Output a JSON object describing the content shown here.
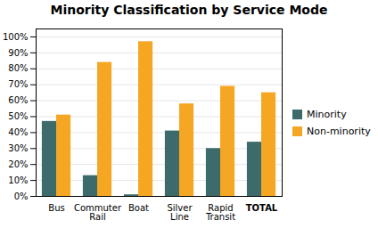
{
  "chart_data": {
    "type": "bar",
    "title": "Minority Classification by Service Mode",
    "categories": [
      "Bus",
      "Commuter\nRail",
      "Boat",
      "Silver\nLine",
      "Rapid\nTransit",
      "TOTAL"
    ],
    "series": [
      {
        "name": "Minority",
        "color": "#3d6b6b",
        "values": [
          0.47,
          0.13,
          0.01,
          0.41,
          0.3,
          0.34
        ]
      },
      {
        "name": "Non-minority",
        "color": "#f5a623",
        "values": [
          0.51,
          0.84,
          0.97,
          0.58,
          0.69,
          0.65
        ]
      }
    ],
    "ylim": [
      0,
      1.05
    ],
    "yticks": [
      {
        "value": 0,
        "label": "0%"
      },
      {
        "value": 0.1,
        "label": "10%"
      },
      {
        "value": 0.2,
        "label": "20%"
      },
      {
        "value": 0.3,
        "label": "30%"
      },
      {
        "value": 0.4,
        "label": "40%"
      },
      {
        "value": 0.5,
        "label": "50%"
      },
      {
        "value": 0.6,
        "label": "60%"
      },
      {
        "value": 0.7,
        "label": "70%"
      },
      {
        "value": 0.8,
        "label": "80%"
      },
      {
        "value": 0.9,
        "label": "90%"
      },
      {
        "value": 1.0,
        "label": "100%"
      }
    ],
    "grid": true,
    "legend": "right"
  }
}
